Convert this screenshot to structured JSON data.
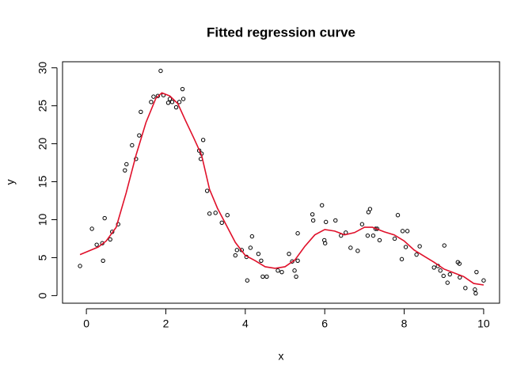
{
  "chart_data": {
    "type": "scatter",
    "title": "Fitted regression curve",
    "x_label": "x",
    "y_label": "y",
    "xlim": [
      -0.6,
      10.4
    ],
    "ylim": [
      -1.0,
      30.8
    ],
    "xticks": [
      0,
      2,
      4,
      6,
      8,
      10
    ],
    "yticks": [
      0,
      5,
      10,
      15,
      20,
      25,
      30
    ],
    "series": [
      {
        "type": "scatter",
        "color": "#000000",
        "x": [
          -0.16,
          0.14,
          0.26,
          0.4,
          0.42,
          0.46,
          0.6,
          0.65,
          0.8,
          0.97,
          1.01,
          1.15,
          1.25,
          1.33,
          1.37,
          1.63,
          1.69,
          1.8,
          1.87,
          1.94,
          2.06,
          2.1,
          2.16,
          2.26,
          2.34,
          2.42,
          2.44,
          2.84,
          2.88,
          2.9,
          2.94,
          3.04,
          3.1,
          3.25,
          3.41,
          3.55,
          3.75,
          3.79,
          3.91,
          4.03,
          4.05,
          4.13,
          4.17,
          4.33,
          4.4,
          4.44,
          4.54,
          4.82,
          4.92,
          5.1,
          5.18,
          5.24,
          5.28,
          5.32,
          5.32,
          5.69,
          5.71,
          5.93,
          5.99,
          6.01,
          6.03,
          6.27,
          6.41,
          6.53,
          6.65,
          6.83,
          6.94,
          7.08,
          7.1,
          7.14,
          7.22,
          7.28,
          7.32,
          7.38,
          7.76,
          7.84,
          7.94,
          7.96,
          8.04,
          8.08,
          8.31,
          8.39,
          8.75,
          8.85,
          8.91,
          8.99,
          9.01,
          9.09,
          9.15,
          9.35,
          9.39,
          9.4,
          9.54,
          9.78,
          9.8,
          9.82,
          10
        ],
        "values": [
          3.9,
          8.8,
          6.7,
          6.9,
          4.6,
          10.2,
          7.4,
          8.4,
          9.4,
          16.5,
          17.3,
          19.8,
          18.0,
          21.1,
          24.2,
          25.5,
          26.2,
          26.3,
          29.6,
          26.4,
          25.4,
          25.9,
          25.5,
          24.8,
          25.5,
          27.2,
          25.9,
          19.1,
          18.0,
          18.7,
          20.5,
          13.8,
          10.8,
          10.9,
          9.6,
          10.6,
          5.3,
          6.0,
          6.0,
          5.1,
          2.0,
          6.3,
          7.8,
          5.5,
          4.6,
          2.5,
          2.5,
          3.3,
          3.1,
          5.5,
          4.5,
          3.3,
          2.5,
          4.6,
          8.2,
          10.7,
          9.9,
          11.9,
          7.3,
          6.9,
          9.7,
          9.9,
          7.9,
          8.3,
          6.3,
          5.9,
          9.4,
          7.9,
          11.0,
          11.4,
          7.9,
          8.8,
          8.8,
          7.3,
          7.5,
          10.6,
          4.8,
          8.5,
          6.4,
          8.5,
          5.4,
          6.5,
          3.7,
          3.9,
          3.3,
          2.6,
          6.6,
          1.7,
          2.8,
          4.4,
          4.2,
          2.4,
          1.0,
          0.8,
          0.3,
          3.1,
          2.0
        ]
      },
      {
        "type": "line",
        "color": "#e0102a",
        "x": [
          -0.16,
          0.3,
          0.5,
          0.75,
          1.0,
          1.25,
          1.5,
          1.75,
          1.9,
          2.1,
          2.3,
          2.5,
          2.7,
          2.9,
          3.1,
          3.3,
          3.5,
          3.75,
          4.0,
          4.25,
          4.5,
          4.75,
          5.0,
          5.25,
          5.5,
          5.75,
          6.0,
          6.25,
          6.5,
          6.75,
          7.0,
          7.2,
          7.5,
          7.75,
          8.0,
          8.25,
          8.5,
          8.75,
          9.0,
          9.25,
          9.5,
          9.75,
          10.0
        ],
        "values": [
          5.4,
          6.4,
          7.2,
          9.0,
          13.5,
          18.5,
          22.8,
          26.0,
          26.7,
          26.3,
          25.3,
          23.0,
          20.8,
          18.5,
          14.0,
          11.5,
          9.5,
          7.0,
          5.3,
          4.6,
          3.8,
          3.6,
          3.8,
          4.7,
          6.5,
          8.0,
          8.7,
          8.5,
          8.0,
          8.3,
          9.0,
          9.0,
          8.4,
          8.0,
          7.2,
          6.0,
          5.2,
          4.4,
          3.5,
          3.0,
          2.5,
          1.6,
          1.4
        ]
      }
    ]
  }
}
